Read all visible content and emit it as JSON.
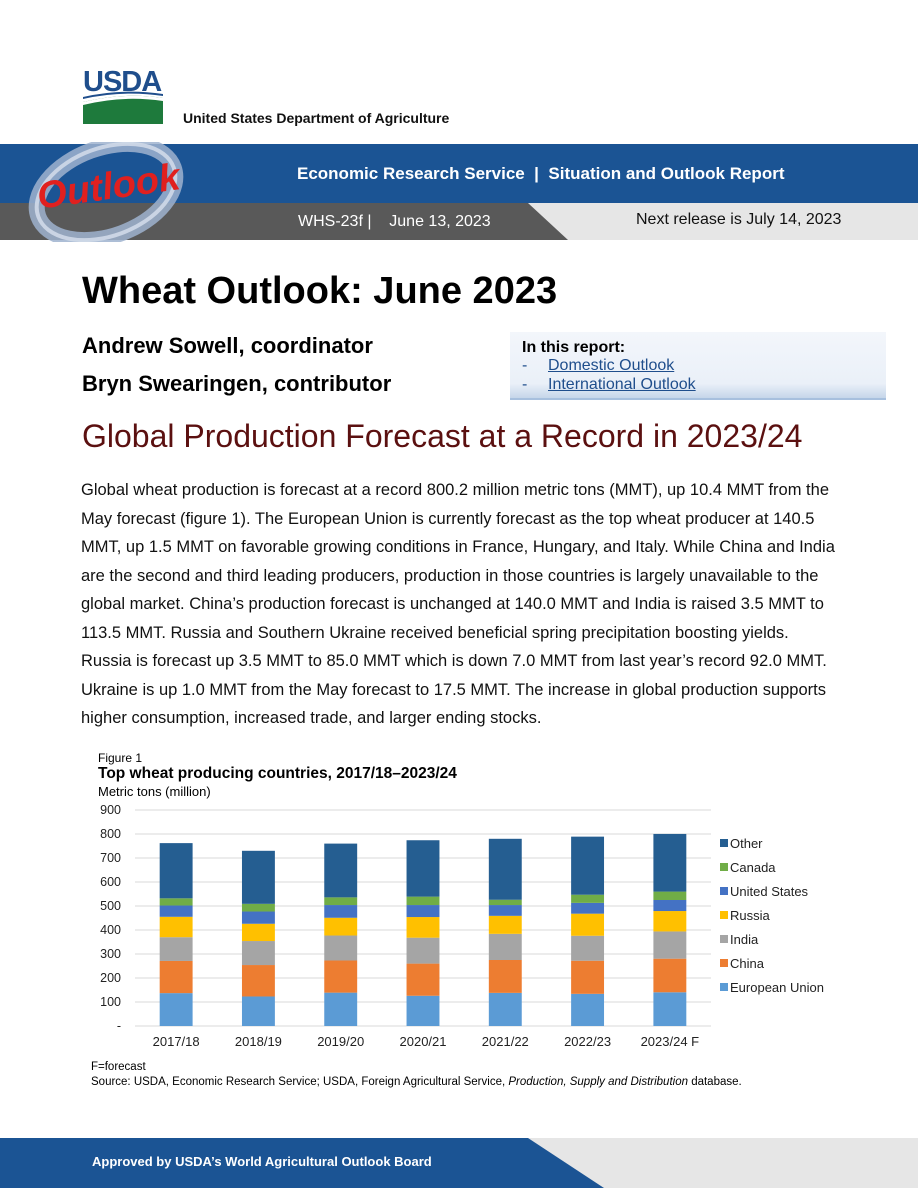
{
  "header": {
    "logo_text": "USDA",
    "department": "United States Department of Agriculture",
    "banner_title": "Economic Research Service  |  Situation and Outlook Report",
    "outlook_logo_text": "Outlook",
    "report_id": "WHS-23f |    June 13, 2023",
    "next_release": "Next release is July 14, 2023"
  },
  "main": {
    "title": "Wheat Outlook: June 2023",
    "authors": [
      "Andrew Sowell, coordinator",
      "Bryn Swearingen, contributor"
    ],
    "in_this_report": {
      "title": "In this report:",
      "links": [
        {
          "dash": "-",
          "label": "Domestic Outlook"
        },
        {
          "dash": "-",
          "label": "International Outlook"
        }
      ]
    },
    "section_heading": "Global Production Forecast at a Record in 2023/24",
    "body": "Global wheat production is forecast at a record 800.2 million metric tons (MMT), up 10.4 MMT from the May forecast (figure 1). The European Union is currently forecast as the top wheat producer at 140.5 MMT, up 1.5 MMT on favorable growing conditions in France, Hungary, and Italy. While China and India are the second and third leading producers, production in those countries is largely unavailable to the global market. China’s production forecast is unchanged at 140.0 MMT and India is raised 3.5 MMT to 113.5 MMT. Russia and Southern Ukraine received beneficial spring precipitation boosting yields. Russia is forecast up 3.5 MMT to 85.0 MMT which is down 7.0 MMT from last year’s record 92.0 MMT. Ukraine is up 1.0 MMT from the May forecast to 17.5 MMT. The increase in global production supports higher consumption, increased trade, and larger ending stocks."
  },
  "figure": {
    "label": "Figure 1",
    "title": "Top wheat producing countries, 2017/18–2023/24",
    "unit": "Metric tons (million)",
    "note": "F=forecast",
    "source_prefix": "Source: USDA, Economic Research Service; USDA, Foreign Agricultural Service, ",
    "source_italic": "Production, Supply and Distribution",
    "source_suffix": " database."
  },
  "chart_data": {
    "type": "bar",
    "stacked": true,
    "categories": [
      "2017/18",
      "2018/19",
      "2019/20",
      "2020/21",
      "2021/22",
      "2022/23",
      "2023/24 F"
    ],
    "ylim": [
      0,
      900
    ],
    "yticks": [
      0,
      100,
      200,
      300,
      400,
      500,
      600,
      700,
      800,
      900
    ],
    "ytick_labels": [
      "-",
      "100",
      "200",
      "300",
      "400",
      "500",
      "600",
      "700",
      "800",
      "900"
    ],
    "grid": true,
    "legend_position": "right",
    "series": [
      {
        "name": "European Union",
        "color": "#5b9bd5",
        "values": [
          137,
          123,
          139,
          126,
          138,
          134,
          140.5
        ]
      },
      {
        "name": "China",
        "color": "#ed7d31",
        "values": [
          134,
          131,
          134,
          134,
          137,
          138,
          140
        ]
      },
      {
        "name": "India",
        "color": "#a5a5a5",
        "values": [
          99,
          100,
          104,
          108,
          109,
          104,
          113.5
        ]
      },
      {
        "name": "Russia",
        "color": "#ffc000",
        "values": [
          85,
          72,
          74,
          86,
          75,
          92,
          85
        ]
      },
      {
        "name": "United States",
        "color": "#4472c4",
        "values": [
          47,
          51,
          53,
          50,
          45,
          45,
          46
        ]
      },
      {
        "name": "Canada",
        "color": "#70ad47",
        "values": [
          30,
          32,
          32,
          35,
          22,
          34,
          35
        ]
      },
      {
        "name": "Other",
        "color": "#255e91",
        "values": [
          230,
          221,
          224,
          235,
          254,
          242,
          240.2
        ]
      }
    ],
    "legend_order": [
      "Other",
      "Canada",
      "United States",
      "Russia",
      "India",
      "China",
      "European Union"
    ]
  },
  "footer": {
    "text": "Approved by USDA’s World Agricultural Outlook Board"
  },
  "colors": {
    "brand_blue": "#1b5494",
    "banner_dark_gray": "#595959",
    "outlook_red": "#e0201f",
    "heading_maroon": "#5b1010",
    "usda_green": "#1e7a3c"
  }
}
